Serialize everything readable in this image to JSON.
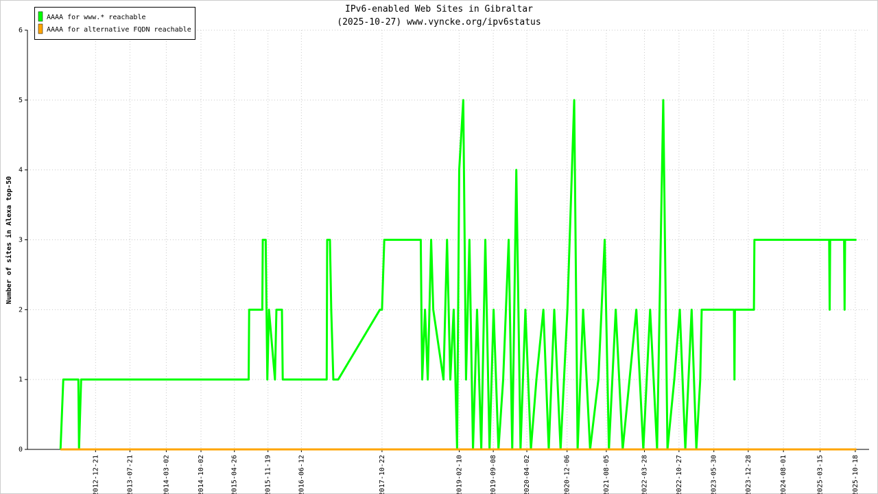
{
  "chart_data": {
    "type": "line",
    "title": "IPv6-enabled Web Sites in Gibraltar",
    "subtitle": "(2025-10-27) www.vyncke.org/ipv6status",
    "y_label": "Number of sites in Alexa top-50",
    "xlim": [
      "2011-10-28",
      "2026-01-11"
    ],
    "ylim": [
      0,
      6
    ],
    "yticks": [
      0,
      1,
      2,
      3,
      4,
      5,
      6
    ],
    "xticks": [
      "2012-12-21",
      "2013-07-21",
      "2014-03-02",
      "2014-10-02",
      "2015-04-26",
      "2015-11-19",
      "2016-06-12",
      "2017-10-22",
      "2019-02-10",
      "2019-09-08",
      "2020-04-02",
      "2020-12-06",
      "2021-08-05",
      "2022-03-28",
      "2022-10-27",
      "2023-05-30",
      "2023-12-28",
      "2024-08-01",
      "2025-03-15",
      "2025-10-18"
    ],
    "grid": true,
    "legend": "top-left",
    "series": [
      {
        "name": "AAAA for www.* reachable",
        "color": "#00ff00",
        "x": [
          "2012-05-19",
          "2012-06-05",
          "2012-09-06",
          "2012-09-10",
          "2012-09-23",
          "2015-07-23",
          "2015-07-26",
          "2015-10-15",
          "2015-10-18",
          "2015-11-05",
          "2015-11-15",
          "2015-11-25",
          "2016-01-01",
          "2016-01-10",
          "2016-02-13",
          "2016-02-18",
          "2016-11-15",
          "2016-11-18",
          "2016-12-05",
          "2016-12-13",
          "2016-12-26",
          "2017-01-25",
          "2017-10-09",
          "2017-10-22",
          "2017-11-05",
          "2018-06-18",
          "2018-06-22",
          "2018-06-27",
          "2018-07-14",
          "2018-07-31",
          "2018-08-21",
          "2018-09-03",
          "2018-11-05",
          "2018-11-27",
          "2018-12-17",
          "2019-01-07",
          "2019-01-28",
          "2019-02-10",
          "2019-03-07",
          "2019-03-24",
          "2019-04-14",
          "2019-05-06",
          "2019-05-31",
          "2019-06-26",
          "2019-07-21",
          "2019-08-16",
          "2019-09-10",
          "2019-10-10",
          "2019-11-08",
          "2019-12-12",
          "2020-01-03",
          "2020-01-28",
          "2020-02-23",
          "2020-03-24",
          "2020-04-27",
          "2020-05-31",
          "2020-07-13",
          "2020-08-15",
          "2020-09-18",
          "2020-10-27",
          "2020-12-08",
          "2021-01-19",
          "2021-02-09",
          "2021-03-15",
          "2021-04-27",
          "2021-06-17",
          "2021-07-26",
          "2021-08-21",
          "2021-10-02",
          "2021-11-14",
          "2021-12-26",
          "2022-02-06",
          "2022-03-21",
          "2022-05-02",
          "2022-06-14",
          "2022-07-22",
          "2022-08-17",
          "2022-09-28",
          "2022-11-01",
          "2022-12-05",
          "2023-01-13",
          "2023-02-11",
          "2023-03-07",
          "2023-03-16",
          "2023-10-01",
          "2023-10-04",
          "2023-10-07",
          "2024-02-01",
          "2024-02-04",
          "2025-05-10",
          "2025-05-13",
          "2025-05-16",
          "2025-08-10",
          "2025-08-13",
          "2025-08-16",
          "2025-10-25"
        ],
        "values": [
          0,
          1,
          1,
          0,
          1,
          1,
          2,
          2,
          3,
          3,
          1,
          2,
          1,
          2,
          2,
          1,
          1,
          3,
          3,
          2,
          1,
          1,
          2,
          2,
          3,
          3,
          2,
          1,
          2,
          1,
          3,
          2,
          1,
          3,
          1,
          2,
          0,
          4,
          5,
          1,
          3,
          0,
          2,
          0,
          3,
          0,
          2,
          0,
          1,
          3,
          0,
          4,
          0,
          2,
          0,
          1,
          2,
          0,
          2,
          0,
          2,
          5,
          0,
          2,
          0,
          1,
          3,
          0,
          2,
          0,
          1,
          2,
          0,
          2,
          0,
          5,
          0,
          1,
          2,
          0,
          2,
          0,
          1,
          2,
          2,
          1,
          2,
          2,
          3,
          3,
          2,
          3,
          3,
          2,
          3,
          3
        ]
      },
      {
        "name": "AAAA for alternative FQDN reachable",
        "color": "#ffa500",
        "x": [
          "2012-05-19",
          "2025-10-25"
        ],
        "values": [
          0,
          0
        ]
      }
    ]
  }
}
